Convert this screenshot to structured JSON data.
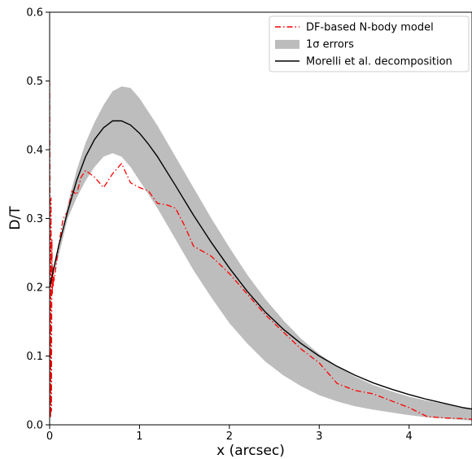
{
  "chart_data": {
    "type": "line",
    "title": "",
    "xlabel": "x (arcsec)",
    "ylabel": "D/T",
    "xlim": [
      0,
      4.7
    ],
    "ylim": [
      0,
      0.6
    ],
    "xticks": [
      0,
      1,
      2,
      3,
      4
    ],
    "xtick_labels": [
      "0",
      "1",
      "2",
      "3",
      "4"
    ],
    "yticks": [
      0.0,
      0.1,
      0.2,
      0.3,
      0.4,
      0.5,
      0.6
    ],
    "ytick_labels": [
      "0.0",
      "0.1",
      "0.2",
      "0.3",
      "0.4",
      "0.5",
      "0.6"
    ],
    "grid": false,
    "legend_position": "top-right",
    "series": [
      {
        "name": "DF-based N-body model",
        "kind": "line",
        "style": "dash-dot",
        "color": "#ff0000",
        "x": [
          0.0,
          0.01,
          0.015,
          0.02,
          0.025,
          0.03,
          0.035,
          0.04,
          0.045,
          0.05,
          0.1,
          0.15,
          0.2,
          0.25,
          0.3,
          0.35,
          0.4,
          0.5,
          0.6,
          0.7,
          0.8,
          0.9,
          1.0,
          1.1,
          1.2,
          1.3,
          1.4,
          1.5,
          1.6,
          1.8,
          2.0,
          2.2,
          2.4,
          2.6,
          2.8,
          3.0,
          3.2,
          3.4,
          3.6,
          3.8,
          4.0,
          4.2,
          4.4,
          4.6,
          4.7
        ],
        "y": [
          0.5,
          0.01,
          0.33,
          0.02,
          0.27,
          0.19,
          0.23,
          0.2,
          0.22,
          0.21,
          0.26,
          0.3,
          0.31,
          0.34,
          0.335,
          0.36,
          0.37,
          0.36,
          0.345,
          0.365,
          0.38,
          0.352,
          0.345,
          0.34,
          0.322,
          0.32,
          0.315,
          0.29,
          0.26,
          0.245,
          0.22,
          0.19,
          0.16,
          0.135,
          0.11,
          0.09,
          0.06,
          0.05,
          0.045,
          0.035,
          0.025,
          0.012,
          0.01,
          0.009,
          0.008
        ]
      },
      {
        "name": "1σ errors",
        "kind": "band",
        "color": "#bdbdbd",
        "x": [
          0.0,
          0.1,
          0.2,
          0.3,
          0.4,
          0.5,
          0.6,
          0.7,
          0.8,
          0.9,
          1.0,
          1.2,
          1.4,
          1.6,
          1.8,
          2.0,
          2.2,
          2.4,
          2.6,
          2.8,
          3.0,
          3.2,
          3.4,
          3.6,
          3.8,
          4.0,
          4.2,
          4.4,
          4.6,
          4.7
        ],
        "y_low": [
          0.2,
          0.245,
          0.3,
          0.33,
          0.355,
          0.375,
          0.39,
          0.395,
          0.39,
          0.375,
          0.355,
          0.315,
          0.27,
          0.225,
          0.185,
          0.148,
          0.118,
          0.092,
          0.072,
          0.056,
          0.043,
          0.034,
          0.027,
          0.022,
          0.018,
          0.014,
          0.011,
          0.009,
          0.007,
          0.006
        ],
        "y_high": [
          0.2,
          0.26,
          0.32,
          0.37,
          0.41,
          0.44,
          0.465,
          0.485,
          0.492,
          0.49,
          0.475,
          0.435,
          0.39,
          0.345,
          0.3,
          0.258,
          0.218,
          0.183,
          0.152,
          0.125,
          0.103,
          0.085,
          0.07,
          0.058,
          0.049,
          0.041,
          0.035,
          0.03,
          0.026,
          0.024
        ]
      },
      {
        "name": "Morelli et al. decomposition",
        "kind": "line",
        "style": "solid",
        "color": "#000000",
        "x": [
          0.0,
          0.05,
          0.1,
          0.2,
          0.3,
          0.4,
          0.5,
          0.6,
          0.7,
          0.8,
          0.9,
          1.0,
          1.1,
          1.2,
          1.4,
          1.6,
          1.8,
          2.0,
          2.2,
          2.4,
          2.6,
          2.8,
          3.0,
          3.2,
          3.4,
          3.6,
          3.8,
          4.0,
          4.2,
          4.4,
          4.6,
          4.7
        ],
        "y": [
          0.2,
          0.23,
          0.26,
          0.31,
          0.355,
          0.39,
          0.415,
          0.432,
          0.442,
          0.442,
          0.436,
          0.424,
          0.408,
          0.39,
          0.348,
          0.305,
          0.265,
          0.228,
          0.194,
          0.164,
          0.139,
          0.118,
          0.1,
          0.085,
          0.072,
          0.061,
          0.052,
          0.044,
          0.037,
          0.031,
          0.025,
          0.023
        ]
      }
    ]
  }
}
